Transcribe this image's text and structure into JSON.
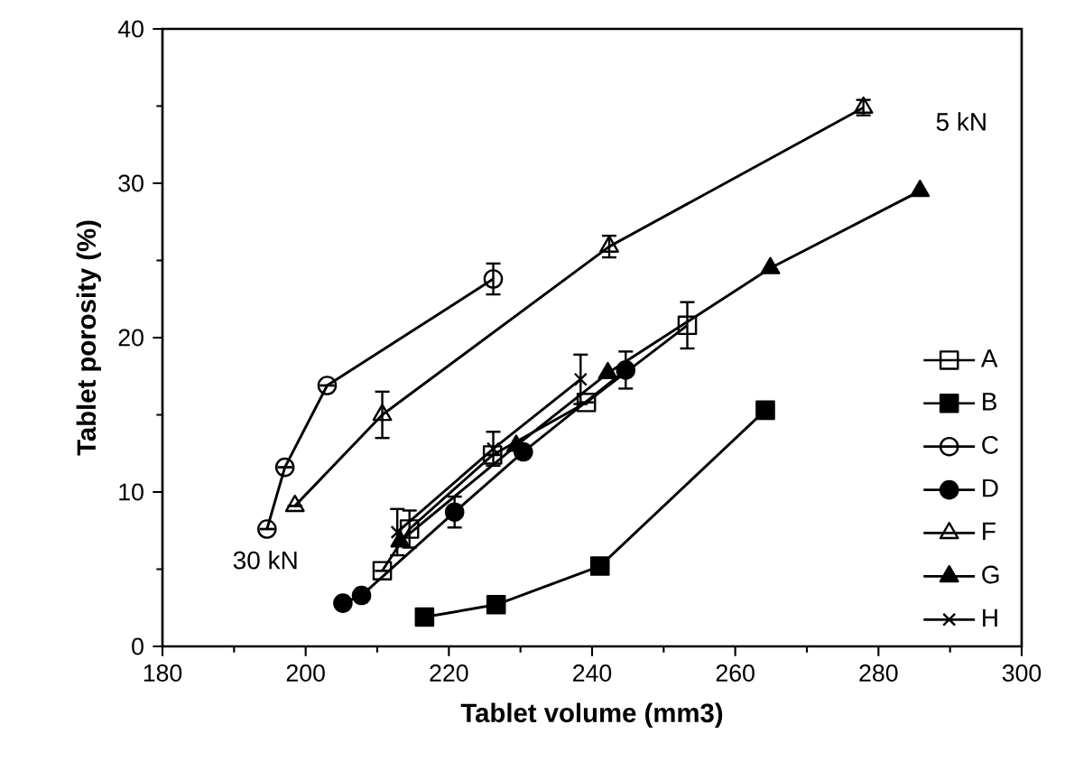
{
  "chart_data": {
    "type": "line",
    "xlabel": "Tablet volume (mm3)",
    "ylabel": "Tablet porosity (%)",
    "xlim": [
      180,
      300
    ],
    "xticks": [
      180,
      200,
      220,
      240,
      260,
      280,
      300
    ],
    "ylim": [
      0,
      40
    ],
    "yticks": [
      0,
      10,
      20,
      30,
      40
    ],
    "legend": "bottom right",
    "grid": false,
    "line_style": "solid",
    "annotations": [
      "5 kN",
      "30 kN"
    ],
    "series": [
      {
        "name": "A",
        "color": "#000000",
        "marker": "square",
        "x": [
          210.7,
          214.5,
          226.1,
          239.2,
          253.3
        ],
        "values": [
          4.9,
          7.6,
          12.4,
          15.8,
          20.8
        ],
        "errors": [
          null,
          1.2,
          null,
          null,
          1.5
        ]
      },
      {
        "name": "B",
        "color": "#000000",
        "marker": "square",
        "x": [
          216.6,
          226.6,
          241.1,
          264.2
        ],
        "values": [
          1.9,
          2.7,
          5.2,
          15.3
        ],
        "errors": [
          null,
          null,
          null,
          null
        ]
      },
      {
        "name": "C",
        "color": "#000000",
        "marker": "circle",
        "x": [
          194.6,
          197.1,
          203.0,
          226.2
        ],
        "values": [
          7.6,
          11.6,
          16.9,
          23.8
        ],
        "errors": [
          null,
          null,
          null,
          1
        ]
      },
      {
        "name": "D",
        "color": "#000000",
        "marker": "circle",
        "x": [
          205.2,
          207.8,
          220.8,
          230.4,
          244.7
        ],
        "values": [
          2.8,
          3.3,
          8.7,
          12.6,
          17.9
        ],
        "errors": [
          null,
          null,
          1,
          null,
          1.2
        ]
      },
      {
        "name": "F",
        "color": "#000000",
        "marker": "triangle",
        "x": [
          198.5,
          210.7,
          242.4,
          277.9
        ],
        "values": [
          9.1,
          15.0,
          25.9,
          34.9
        ],
        "errors": [
          null,
          1.5,
          0.7,
          0.5
        ]
      },
      {
        "name": "G",
        "color": "#000000",
        "marker": "triangle",
        "x": [
          213.2,
          229.4,
          242.2,
          264.9,
          285.8
        ],
        "values": [
          6.8,
          13.0,
          17.7,
          24.5,
          29.5
        ],
        "errors": [
          null,
          null,
          null,
          null,
          null
        ]
      },
      {
        "name": "H",
        "color": "#000000",
        "marker": "cross",
        "x": [
          212.8,
          226.2,
          238.4
        ],
        "values": [
          7.4,
          12.8,
          17.3
        ],
        "errors": [
          1.5,
          1.1,
          1.6
        ]
      }
    ]
  }
}
